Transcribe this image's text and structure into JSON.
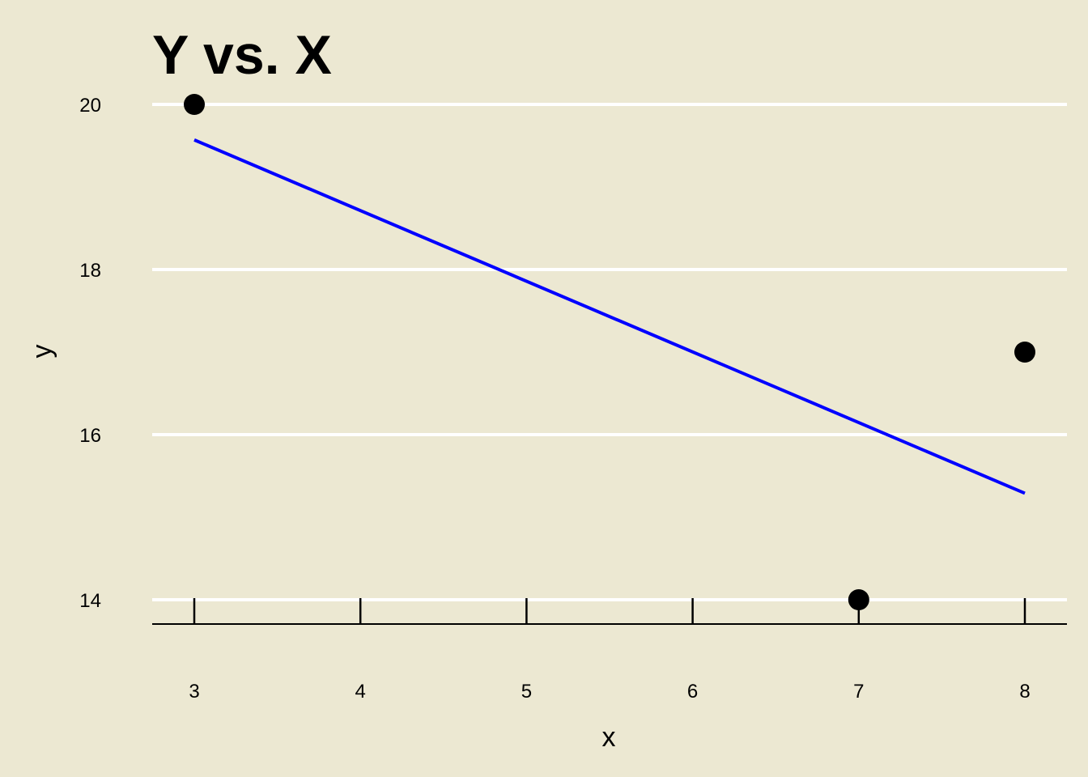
{
  "chart_data": {
    "type": "scatter",
    "title": "Y vs. X",
    "xlabel": "x",
    "ylabel": "y",
    "xlim": [
      2.75,
      8.25
    ],
    "ylim": [
      13.7,
      20.3
    ],
    "x_ticks": [
      3,
      4,
      5,
      6,
      7,
      8
    ],
    "y_ticks": [
      14,
      16,
      18,
      20
    ],
    "grid": "horizontal",
    "colors": {
      "background": "#ECE8D2",
      "grid": "#FFFFFF",
      "points": "#000000",
      "fit_line": "#0000FF",
      "axis": "#000000"
    },
    "points": [
      {
        "x": 3,
        "y": 20
      },
      {
        "x": 7,
        "y": 14
      },
      {
        "x": 8,
        "y": 17
      }
    ],
    "fit_line": {
      "type": "linear-regression",
      "x": [
        3,
        8
      ],
      "y": [
        19.57,
        15.29
      ]
    }
  }
}
